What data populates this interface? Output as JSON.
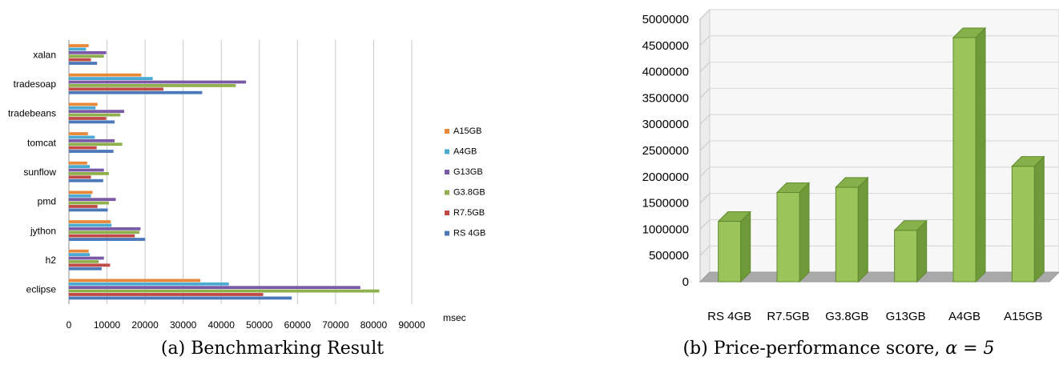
{
  "chart_data": [
    {
      "type": "bar",
      "orientation": "horizontal",
      "title": "",
      "caption": "(a) Benchmarking Result",
      "xlabel": "msec",
      "xlim": [
        0,
        90000
      ],
      "xticks": [
        0,
        10000,
        20000,
        30000,
        40000,
        50000,
        60000,
        70000,
        80000,
        90000
      ],
      "grid": true,
      "legend_position": "right",
      "categories": [
        "xalan",
        "tradesoap",
        "tradebeans",
        "tomcat",
        "sunflow",
        "pmd",
        "jython",
        "h2",
        "eclipse"
      ],
      "series": [
        {
          "name": "A15GB",
          "color": "#e8893a",
          "values": [
            5200,
            19000,
            7500,
            5000,
            4800,
            6200,
            11000,
            5200,
            34500
          ]
        },
        {
          "name": "A4GB",
          "color": "#4aaad1",
          "values": [
            4500,
            22000,
            7000,
            6800,
            5500,
            5800,
            11200,
            5500,
            42000
          ]
        },
        {
          "name": "G13GB",
          "color": "#7a5aa6",
          "values": [
            9800,
            46500,
            14500,
            12000,
            9200,
            12300,
            18800,
            9200,
            76500
          ]
        },
        {
          "name": "G3.8GB",
          "color": "#8fb04c",
          "values": [
            9200,
            43800,
            13500,
            14000,
            10500,
            10500,
            18500,
            7800,
            81500
          ]
        },
        {
          "name": "R7.5GB",
          "color": "#bf4a45",
          "values": [
            5800,
            24800,
            9800,
            7300,
            5800,
            7500,
            17300,
            10800,
            51000
          ]
        },
        {
          "name": "RS 4GB",
          "color": "#4a78b8",
          "values": [
            7400,
            35000,
            12000,
            11700,
            9000,
            10200,
            20000,
            8600,
            58500
          ]
        }
      ]
    },
    {
      "type": "bar",
      "title": "",
      "caption": "(b) Price-performance score, ",
      "caption_math": "α = 5",
      "ylim": [
        0,
        5000000
      ],
      "yticks": [
        0,
        500000,
        1000000,
        1500000,
        2000000,
        2500000,
        3000000,
        3500000,
        4000000,
        4500000,
        5000000
      ],
      "grid": true,
      "categories": [
        "RS 4GB",
        "R7.5GB",
        "G3.8GB",
        "G13GB",
        "A4GB",
        "A15GB"
      ],
      "values": [
        1150000,
        1700000,
        1800000,
        980000,
        4650000,
        2200000
      ],
      "bar_color": "#9bc55a"
    }
  ]
}
